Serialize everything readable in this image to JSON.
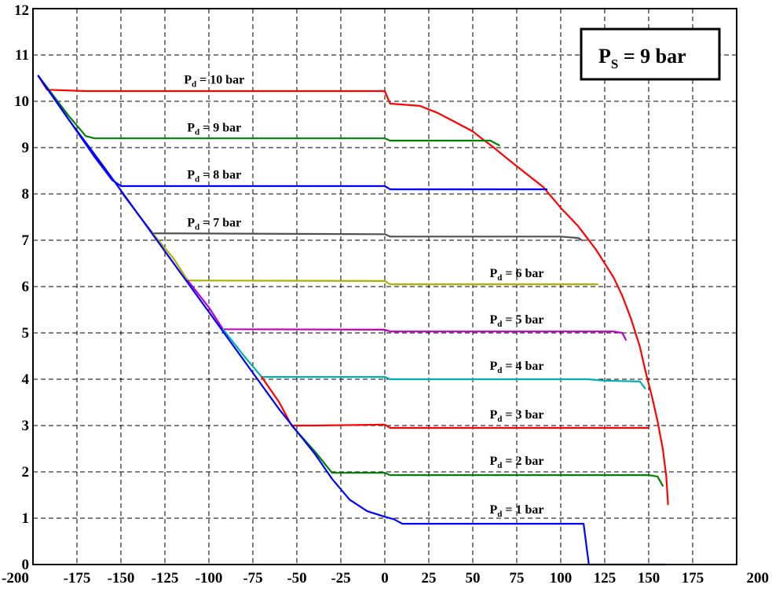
{
  "chart_data": {
    "type": "line",
    "title": "",
    "xlabel": "",
    "ylabel": "",
    "xlim": [
      -200,
      200
    ],
    "ylim": [
      0,
      12
    ],
    "x_ticks": [
      "-200",
      "-175",
      "-150",
      "-125",
      "-100",
      "-75",
      "-50",
      "-25",
      "0",
      "25",
      "50",
      "75",
      "100",
      "125",
      "150",
      "175",
      "200"
    ],
    "y_ticks": [
      "0",
      "1",
      "2",
      "3",
      "4",
      "5",
      "6",
      "7",
      "8",
      "9",
      "10",
      "11",
      "12"
    ],
    "grid": true,
    "annotation": {
      "main": "P",
      "sub": "S",
      "rest": " = 9 bar"
    },
    "series": [
      {
        "color": "#ff0000",
        "label_main": "P",
        "label_sub": "d",
        "label_rest": " = 10 bar",
        "points": [
          [
            -197,
            10.55
          ],
          [
            -192,
            10.25
          ],
          [
            -170,
            10.22
          ],
          [
            0,
            10.22
          ],
          [
            3,
            9.95
          ],
          [
            10,
            9.93
          ],
          [
            20,
            9.9
          ],
          [
            30,
            9.75
          ],
          [
            40,
            9.55
          ],
          [
            50,
            9.35
          ],
          [
            55,
            9.2
          ],
          [
            62,
            9.0
          ],
          [
            70,
            8.75
          ],
          [
            80,
            8.45
          ],
          [
            90,
            8.15
          ],
          [
            100,
            7.7
          ],
          [
            110,
            7.3
          ],
          [
            120,
            6.8
          ],
          [
            130,
            6.2
          ],
          [
            135,
            5.8
          ],
          [
            140,
            5.3
          ],
          [
            145,
            4.7
          ],
          [
            148,
            4.2
          ],
          [
            152,
            3.6
          ],
          [
            155,
            3.1
          ],
          [
            158,
            2.5
          ],
          [
            160,
            1.9
          ],
          [
            161,
            1.3
          ]
        ]
      },
      {
        "color": "#008000",
        "label_main": "P",
        "label_sub": "d",
        "label_rest": " = 9 bar",
        "points": [
          [
            -197,
            10.55
          ],
          [
            -190,
            10.2
          ],
          [
            -180,
            9.7
          ],
          [
            -170,
            9.25
          ],
          [
            -165,
            9.2
          ],
          [
            0,
            9.2
          ],
          [
            3,
            9.15
          ],
          [
            60,
            9.15
          ],
          [
            65,
            9.05
          ]
        ]
      },
      {
        "color": "#0000ff",
        "label_main": "P",
        "label_sub": "d",
        "label_rest": " = 8 bar",
        "points": [
          [
            -197,
            10.55
          ],
          [
            -185,
            9.9
          ],
          [
            -175,
            9.35
          ],
          [
            -165,
            8.8
          ],
          [
            -155,
            8.3
          ],
          [
            -150,
            8.17
          ],
          [
            0,
            8.17
          ],
          [
            3,
            8.1
          ],
          [
            92,
            8.1
          ]
        ]
      },
      {
        "color": "#505050",
        "label_main": "P",
        "label_sub": "d",
        "label_rest": " = 7 bar",
        "points": [
          [
            -150,
            8.05
          ],
          [
            -140,
            7.55
          ],
          [
            -132,
            7.15
          ],
          [
            0,
            7.13
          ],
          [
            3,
            7.08
          ],
          [
            100,
            7.08
          ],
          [
            110,
            7.05
          ],
          [
            112,
            7.0
          ]
        ]
      },
      {
        "color": "#b0b000",
        "label_main": "P",
        "label_sub": "d",
        "label_rest": " = 6 bar",
        "points": [
          [
            -132,
            7.15
          ],
          [
            -120,
            6.6
          ],
          [
            -112,
            6.13
          ],
          [
            0,
            6.12
          ],
          [
            3,
            6.05
          ],
          [
            121,
            6.05
          ]
        ]
      },
      {
        "color": "#c000c0",
        "label_main": "P",
        "label_sub": "d",
        "label_rest": " = 5 bar",
        "points": [
          [
            -112,
            6.13
          ],
          [
            -100,
            5.55
          ],
          [
            -92,
            5.08
          ],
          [
            0,
            5.07
          ],
          [
            3,
            5.03
          ],
          [
            130,
            5.03
          ],
          [
            135,
            5.0
          ],
          [
            137,
            4.85
          ]
        ]
      },
      {
        "color": "#00b0b0",
        "label_main": "P",
        "label_sub": "d",
        "label_rest": " = 4 bar",
        "points": [
          [
            -92,
            5.08
          ],
          [
            -80,
            4.5
          ],
          [
            -70,
            4.05
          ],
          [
            0,
            4.05
          ],
          [
            3,
            4.0
          ],
          [
            115,
            4.0
          ],
          [
            125,
            3.97
          ],
          [
            145,
            3.95
          ],
          [
            148,
            3.8
          ]
        ]
      },
      {
        "color": "#ff0000",
        "label_main": "P",
        "label_sub": "d",
        "label_rest": " = 3 bar",
        "points": [
          [
            -70,
            4.05
          ],
          [
            -60,
            3.5
          ],
          [
            -53,
            3.0
          ],
          [
            -40,
            3.0
          ],
          [
            0,
            3.02
          ],
          [
            3,
            2.95
          ],
          [
            150,
            2.95
          ]
        ]
      },
      {
        "color": "#008000",
        "label_main": "P",
        "label_sub": "d",
        "label_rest": " = 2 bar",
        "points": [
          [
            -53,
            3.0
          ],
          [
            -40,
            2.45
          ],
          [
            -30,
            1.98
          ],
          [
            0,
            1.98
          ],
          [
            3,
            1.93
          ],
          [
            120,
            1.93
          ],
          [
            150,
            1.93
          ],
          [
            155,
            1.9
          ],
          [
            158,
            1.7
          ]
        ]
      },
      {
        "color": "#0000ff",
        "label_main": "P",
        "label_sub": "d",
        "label_rest": " = 1 bar",
        "points": [
          [
            -197,
            10.55
          ],
          [
            -180,
            9.62
          ],
          [
            -160,
            8.6
          ],
          [
            -140,
            7.55
          ],
          [
            -120,
            6.5
          ],
          [
            -100,
            5.45
          ],
          [
            -80,
            4.4
          ],
          [
            -60,
            3.35
          ],
          [
            -40,
            2.4
          ],
          [
            -30,
            1.85
          ],
          [
            -20,
            1.4
          ],
          [
            -10,
            1.15
          ],
          [
            0,
            1.03
          ],
          [
            5,
            0.98
          ],
          [
            10,
            0.88
          ],
          [
            113,
            0.88
          ],
          [
            116,
            0.0
          ],
          [
            160,
            0.0
          ]
        ]
      }
    ]
  }
}
